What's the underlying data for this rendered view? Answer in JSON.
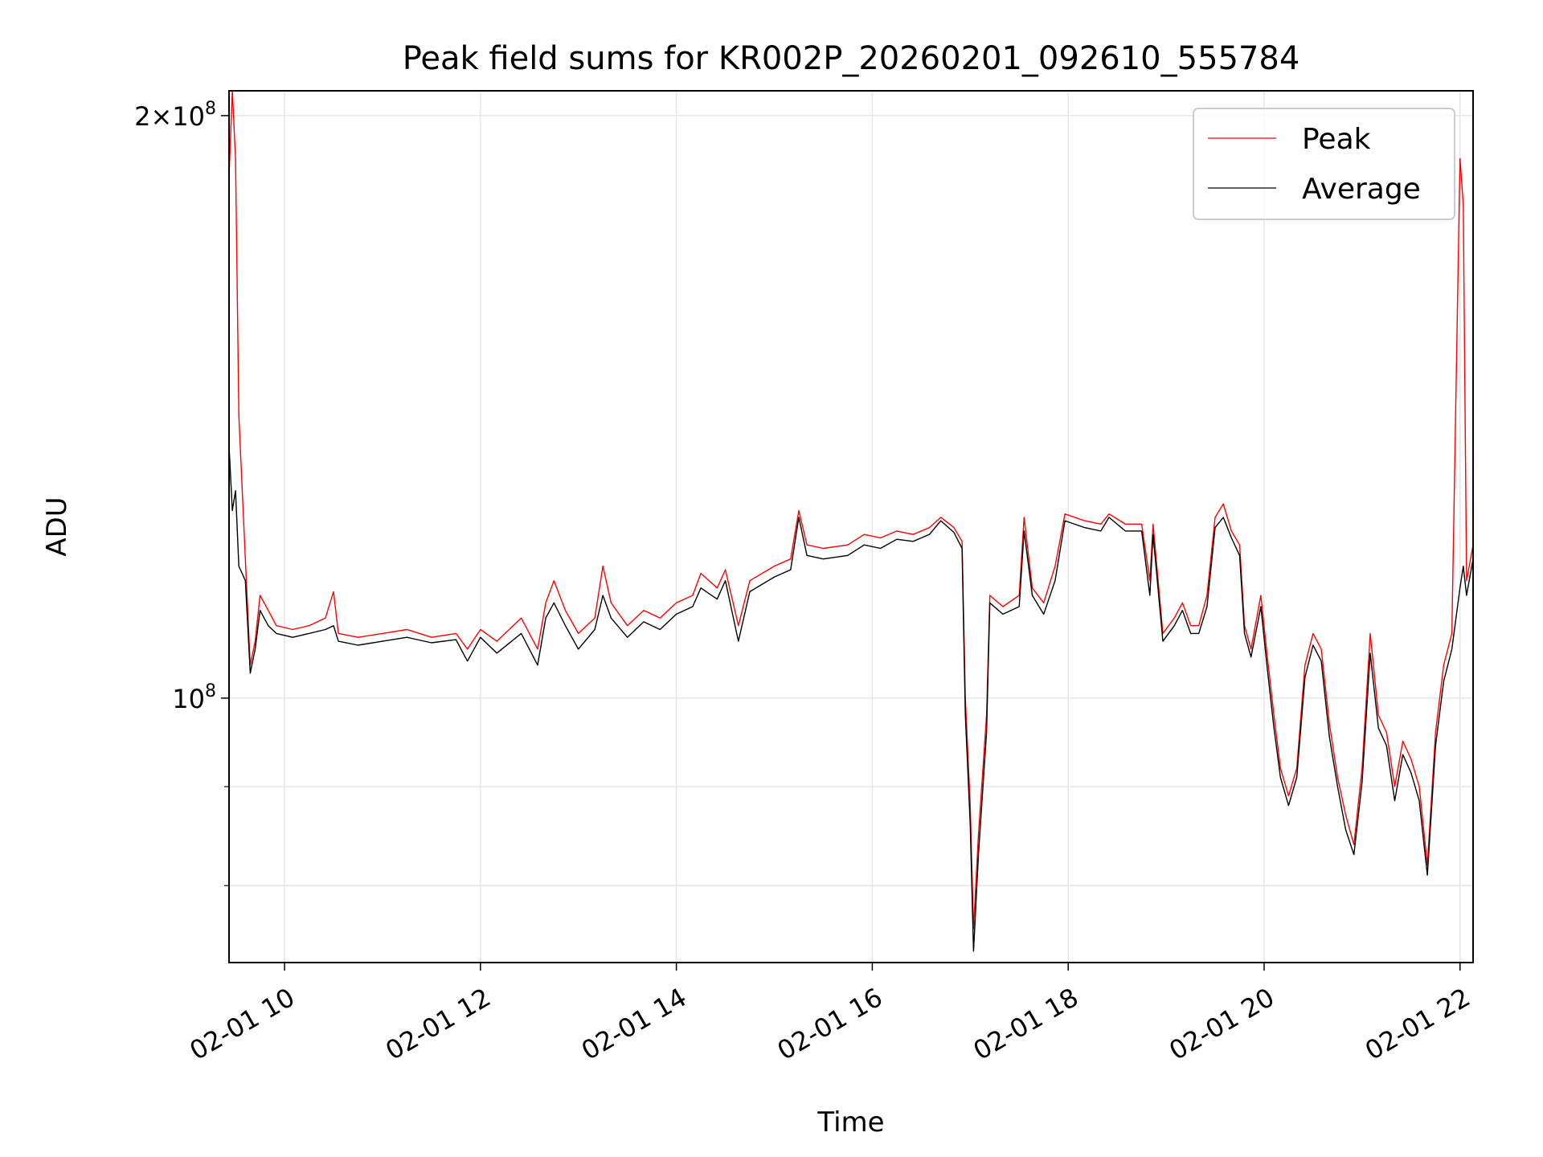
{
  "chart_data": {
    "type": "line",
    "title": "Peak field sums for KR002P_20260201_092610_555784",
    "xlabel": "Time",
    "ylabel": "ADU",
    "y_scale": "log",
    "grid": true,
    "legend_position": "top-right",
    "xlim": [
      "2026-02-01 09:26",
      "2026-02-01 22:08"
    ],
    "ylim": [
      73000000,
      206000000
    ],
    "x_ticks": [
      {
        "value": "2026-02-01 10:00",
        "label": "02-01 10"
      },
      {
        "value": "2026-02-01 12:00",
        "label": "02-01 12"
      },
      {
        "value": "2026-02-01 14:00",
        "label": "02-01 14"
      },
      {
        "value": "2026-02-01 16:00",
        "label": "02-01 16"
      },
      {
        "value": "2026-02-01 18:00",
        "label": "02-01 18"
      },
      {
        "value": "2026-02-01 20:00",
        "label": "02-01 20"
      },
      {
        "value": "2026-02-01 22:00",
        "label": "02-01 22"
      }
    ],
    "y_ticks": [
      {
        "value": 200000000,
        "mantissa": "2",
        "exponent": "8"
      },
      {
        "value": 100000000,
        "mantissa": "",
        "exponent": "8"
      }
    ],
    "y_minor_ticks": [
      80000000,
      90000000
    ],
    "series": [
      {
        "name": "Peak",
        "color": "#ff0000",
        "points": [
          [
            "2026-02-01 09:26",
            186000000
          ],
          [
            "2026-02-01 09:28",
            206000000
          ],
          [
            "2026-02-01 09:30",
            190000000
          ],
          [
            "2026-02-01 09:32",
            140000000
          ],
          [
            "2026-02-01 09:36",
            118000000
          ],
          [
            "2026-02-01 09:39",
            104000000
          ],
          [
            "2026-02-01 09:42",
            107000000
          ],
          [
            "2026-02-01 09:45",
            113000000
          ],
          [
            "2026-02-01 09:50",
            111000000
          ],
          [
            "2026-02-01 09:55",
            109000000
          ],
          [
            "2026-02-01 10:05",
            108500000
          ],
          [
            "2026-02-01 10:15",
            109000000
          ],
          [
            "2026-02-01 10:25",
            110000000
          ],
          [
            "2026-02-01 10:30",
            113500000
          ],
          [
            "2026-02-01 10:33",
            108000000
          ],
          [
            "2026-02-01 10:45",
            107500000
          ],
          [
            "2026-02-01 11:00",
            108000000
          ],
          [
            "2026-02-01 11:15",
            108500000
          ],
          [
            "2026-02-01 11:30",
            107500000
          ],
          [
            "2026-02-01 11:45",
            108000000
          ],
          [
            "2026-02-01 11:52",
            106000000
          ],
          [
            "2026-02-01 12:00",
            108500000
          ],
          [
            "2026-02-01 12:10",
            107000000
          ],
          [
            "2026-02-01 12:25",
            110000000
          ],
          [
            "2026-02-01 12:35",
            106000000
          ],
          [
            "2026-02-01 12:40",
            112000000
          ],
          [
            "2026-02-01 12:45",
            115000000
          ],
          [
            "2026-02-01 12:52",
            111000000
          ],
          [
            "2026-02-01 13:00",
            108000000
          ],
          [
            "2026-02-01 13:10",
            110000000
          ],
          [
            "2026-02-01 13:15",
            117000000
          ],
          [
            "2026-02-01 13:20",
            112000000
          ],
          [
            "2026-02-01 13:30",
            109000000
          ],
          [
            "2026-02-01 13:40",
            111000000
          ],
          [
            "2026-02-01 13:50",
            110000000
          ],
          [
            "2026-02-01 14:00",
            112000000
          ],
          [
            "2026-02-01 14:10",
            113000000
          ],
          [
            "2026-02-01 14:15",
            116000000
          ],
          [
            "2026-02-01 14:25",
            114000000
          ],
          [
            "2026-02-01 14:30",
            116500000
          ],
          [
            "2026-02-01 14:38",
            109000000
          ],
          [
            "2026-02-01 14:45",
            115000000
          ],
          [
            "2026-02-01 15:00",
            117000000
          ],
          [
            "2026-02-01 15:10",
            118000000
          ],
          [
            "2026-02-01 15:15",
            125000000
          ],
          [
            "2026-02-01 15:20",
            120000000
          ],
          [
            "2026-02-01 15:30",
            119500000
          ],
          [
            "2026-02-01 15:45",
            120000000
          ],
          [
            "2026-02-01 15:55",
            121500000
          ],
          [
            "2026-02-01 16:05",
            121000000
          ],
          [
            "2026-02-01 16:15",
            122000000
          ],
          [
            "2026-02-01 16:25",
            121500000
          ],
          [
            "2026-02-01 16:35",
            122500000
          ],
          [
            "2026-02-01 16:42",
            124000000
          ],
          [
            "2026-02-01 16:50",
            122500000
          ],
          [
            "2026-02-01 16:55",
            120500000
          ],
          [
            "2026-02-01 16:57",
            100000000
          ],
          [
            "2026-02-01 17:00",
            88000000
          ],
          [
            "2026-02-01 17:02",
            76000000
          ],
          [
            "2026-02-01 17:05",
            85000000
          ],
          [
            "2026-02-01 17:10",
            98000000
          ],
          [
            "2026-02-01 17:12",
            113000000
          ],
          [
            "2026-02-01 17:20",
            111500000
          ],
          [
            "2026-02-01 17:30",
            113000000
          ],
          [
            "2026-02-01 17:33",
            124000000
          ],
          [
            "2026-02-01 17:38",
            114000000
          ],
          [
            "2026-02-01 17:45",
            112000000
          ],
          [
            "2026-02-01 17:52",
            117000000
          ],
          [
            "2026-02-01 17:58",
            124500000
          ],
          [
            "2026-02-01 18:10",
            123500000
          ],
          [
            "2026-02-01 18:20",
            123000000
          ],
          [
            "2026-02-01 18:25",
            124500000
          ],
          [
            "2026-02-01 18:35",
            123000000
          ],
          [
            "2026-02-01 18:45",
            123000000
          ],
          [
            "2026-02-01 18:50",
            115000000
          ],
          [
            "2026-02-01 18:52",
            123000000
          ],
          [
            "2026-02-01 18:58",
            108000000
          ],
          [
            "2026-02-01 19:05",
            110000000
          ],
          [
            "2026-02-01 19:10",
            112000000
          ],
          [
            "2026-02-01 19:15",
            109000000
          ],
          [
            "2026-02-01 19:20",
            109000000
          ],
          [
            "2026-02-01 19:25",
            113000000
          ],
          [
            "2026-02-01 19:30",
            124000000
          ],
          [
            "2026-02-01 19:35",
            126000000
          ],
          [
            "2026-02-01 19:40",
            122000000
          ],
          [
            "2026-02-01 19:45",
            120000000
          ],
          [
            "2026-02-01 19:48",
            109000000
          ],
          [
            "2026-02-01 19:52",
            106000000
          ],
          [
            "2026-02-01 19:58",
            113000000
          ],
          [
            "2026-02-01 20:02",
            105000000
          ],
          [
            "2026-02-01 20:06",
            98000000
          ],
          [
            "2026-02-01 20:10",
            92000000
          ],
          [
            "2026-02-01 20:15",
            89000000
          ],
          [
            "2026-02-01 20:20",
            92000000
          ],
          [
            "2026-02-01 20:25",
            104000000
          ],
          [
            "2026-02-01 20:30",
            108000000
          ],
          [
            "2026-02-01 20:35",
            106000000
          ],
          [
            "2026-02-01 20:40",
            97000000
          ],
          [
            "2026-02-01 20:45",
            91000000
          ],
          [
            "2026-02-01 20:50",
            87000000
          ],
          [
            "2026-02-01 20:55",
            84000000
          ],
          [
            "2026-02-01 21:00",
            92000000
          ],
          [
            "2026-02-01 21:05",
            108000000
          ],
          [
            "2026-02-01 21:10",
            98000000
          ],
          [
            "2026-02-01 21:15",
            96000000
          ],
          [
            "2026-02-01 21:20",
            90000000
          ],
          [
            "2026-02-01 21:25",
            95000000
          ],
          [
            "2026-02-01 21:30",
            93000000
          ],
          [
            "2026-02-01 21:35",
            90000000
          ],
          [
            "2026-02-01 21:40",
            82000000
          ],
          [
            "2026-02-01 21:45",
            96000000
          ],
          [
            "2026-02-01 21:50",
            104000000
          ],
          [
            "2026-02-01 21:55",
            108000000
          ],
          [
            "2026-02-01 22:00",
            190000000
          ],
          [
            "2026-02-01 22:02",
            180000000
          ],
          [
            "2026-02-01 22:04",
            115000000
          ],
          [
            "2026-02-01 22:08",
            120000000
          ]
        ]
      },
      {
        "name": "Average",
        "color": "#000000",
        "points": [
          [
            "2026-02-01 09:26",
            135000000
          ],
          [
            "2026-02-01 09:28",
            125000000
          ],
          [
            "2026-02-01 09:30",
            128000000
          ],
          [
            "2026-02-01 09:32",
            117000000
          ],
          [
            "2026-02-01 09:36",
            115000000
          ],
          [
            "2026-02-01 09:39",
            103000000
          ],
          [
            "2026-02-01 09:42",
            106000000
          ],
          [
            "2026-02-01 09:45",
            111000000
          ],
          [
            "2026-02-01 09:50",
            109000000
          ],
          [
            "2026-02-01 09:55",
            108000000
          ],
          [
            "2026-02-01 10:05",
            107500000
          ],
          [
            "2026-02-01 10:15",
            108000000
          ],
          [
            "2026-02-01 10:25",
            108500000
          ],
          [
            "2026-02-01 10:30",
            109000000
          ],
          [
            "2026-02-01 10:33",
            107000000
          ],
          [
            "2026-02-01 10:45",
            106500000
          ],
          [
            "2026-02-01 11:00",
            107000000
          ],
          [
            "2026-02-01 11:15",
            107500000
          ],
          [
            "2026-02-01 11:30",
            106800000
          ],
          [
            "2026-02-01 11:45",
            107200000
          ],
          [
            "2026-02-01 11:52",
            104500000
          ],
          [
            "2026-02-01 12:00",
            107500000
          ],
          [
            "2026-02-01 12:10",
            105500000
          ],
          [
            "2026-02-01 12:25",
            108000000
          ],
          [
            "2026-02-01 12:35",
            104000000
          ],
          [
            "2026-02-01 12:40",
            110000000
          ],
          [
            "2026-02-01 12:45",
            112000000
          ],
          [
            "2026-02-01 12:52",
            109000000
          ],
          [
            "2026-02-01 13:00",
            106000000
          ],
          [
            "2026-02-01 13:10",
            108500000
          ],
          [
            "2026-02-01 13:15",
            113000000
          ],
          [
            "2026-02-01 13:20",
            110000000
          ],
          [
            "2026-02-01 13:30",
            107500000
          ],
          [
            "2026-02-01 13:40",
            109500000
          ],
          [
            "2026-02-01 13:50",
            108500000
          ],
          [
            "2026-02-01 14:00",
            110500000
          ],
          [
            "2026-02-01 14:10",
            111500000
          ],
          [
            "2026-02-01 14:15",
            114000000
          ],
          [
            "2026-02-01 14:25",
            112500000
          ],
          [
            "2026-02-01 14:30",
            115000000
          ],
          [
            "2026-02-01 14:38",
            107000000
          ],
          [
            "2026-02-01 14:45",
            113500000
          ],
          [
            "2026-02-01 15:00",
            115500000
          ],
          [
            "2026-02-01 15:10",
            116500000
          ],
          [
            "2026-02-01 15:15",
            124000000
          ],
          [
            "2026-02-01 15:20",
            118500000
          ],
          [
            "2026-02-01 15:30",
            118000000
          ],
          [
            "2026-02-01 15:45",
            118500000
          ],
          [
            "2026-02-01 15:55",
            120000000
          ],
          [
            "2026-02-01 16:05",
            119500000
          ],
          [
            "2026-02-01 16:15",
            120800000
          ],
          [
            "2026-02-01 16:25",
            120500000
          ],
          [
            "2026-02-01 16:35",
            121500000
          ],
          [
            "2026-02-01 16:42",
            123500000
          ],
          [
            "2026-02-01 16:50",
            121800000
          ],
          [
            "2026-02-01 16:55",
            119500000
          ],
          [
            "2026-02-01 16:57",
            98000000
          ],
          [
            "2026-02-01 17:00",
            86000000
          ],
          [
            "2026-02-01 17:02",
            74000000
          ],
          [
            "2026-02-01 17:05",
            83000000
          ],
          [
            "2026-02-01 17:10",
            96000000
          ],
          [
            "2026-02-01 17:12",
            112000000
          ],
          [
            "2026-02-01 17:20",
            110500000
          ],
          [
            "2026-02-01 17:30",
            111500000
          ],
          [
            "2026-02-01 17:33",
            122000000
          ],
          [
            "2026-02-01 17:38",
            113000000
          ],
          [
            "2026-02-01 17:45",
            110500000
          ],
          [
            "2026-02-01 17:52",
            115000000
          ],
          [
            "2026-02-01 17:58",
            123500000
          ],
          [
            "2026-02-01 18:10",
            122500000
          ],
          [
            "2026-02-01 18:20",
            122000000
          ],
          [
            "2026-02-01 18:25",
            124000000
          ],
          [
            "2026-02-01 18:35",
            122000000
          ],
          [
            "2026-02-01 18:45",
            122000000
          ],
          [
            "2026-02-01 18:50",
            113000000
          ],
          [
            "2026-02-01 18:52",
            121500000
          ],
          [
            "2026-02-01 18:58",
            107000000
          ],
          [
            "2026-02-01 19:05",
            109000000
          ],
          [
            "2026-02-01 19:10",
            111000000
          ],
          [
            "2026-02-01 19:15",
            108000000
          ],
          [
            "2026-02-01 19:20",
            108000000
          ],
          [
            "2026-02-01 19:25",
            111500000
          ],
          [
            "2026-02-01 19:30",
            122500000
          ],
          [
            "2026-02-01 19:35",
            124000000
          ],
          [
            "2026-02-01 19:40",
            121000000
          ],
          [
            "2026-02-01 19:45",
            118500000
          ],
          [
            "2026-02-01 19:48",
            108000000
          ],
          [
            "2026-02-01 19:52",
            105000000
          ],
          [
            "2026-02-01 19:58",
            111500000
          ],
          [
            "2026-02-01 20:02",
            103500000
          ],
          [
            "2026-02-01 20:06",
            96500000
          ],
          [
            "2026-02-01 20:10",
            91000000
          ],
          [
            "2026-02-01 20:15",
            88000000
          ],
          [
            "2026-02-01 20:20",
            91000000
          ],
          [
            "2026-02-01 20:25",
            102500000
          ],
          [
            "2026-02-01 20:30",
            106500000
          ],
          [
            "2026-02-01 20:35",
            104500000
          ],
          [
            "2026-02-01 20:40",
            95500000
          ],
          [
            "2026-02-01 20:45",
            90000000
          ],
          [
            "2026-02-01 20:50",
            85500000
          ],
          [
            "2026-02-01 20:55",
            83000000
          ],
          [
            "2026-02-01 21:00",
            90500000
          ],
          [
            "2026-02-01 21:05",
            105500000
          ],
          [
            "2026-02-01 21:10",
            96500000
          ],
          [
            "2026-02-01 21:15",
            94500000
          ],
          [
            "2026-02-01 21:20",
            88500000
          ],
          [
            "2026-02-01 21:25",
            93500000
          ],
          [
            "2026-02-01 21:30",
            91500000
          ],
          [
            "2026-02-01 21:35",
            88500000
          ],
          [
            "2026-02-01 21:40",
            81000000
          ],
          [
            "2026-02-01 21:45",
            94500000
          ],
          [
            "2026-02-01 21:50",
            102000000
          ],
          [
            "2026-02-01 21:55",
            106000000
          ],
          [
            "2026-02-01 22:00",
            114000000
          ],
          [
            "2026-02-01 22:02",
            117000000
          ],
          [
            "2026-02-01 22:04",
            113000000
          ],
          [
            "2026-02-01 22:08",
            118000000
          ]
        ]
      }
    ]
  }
}
